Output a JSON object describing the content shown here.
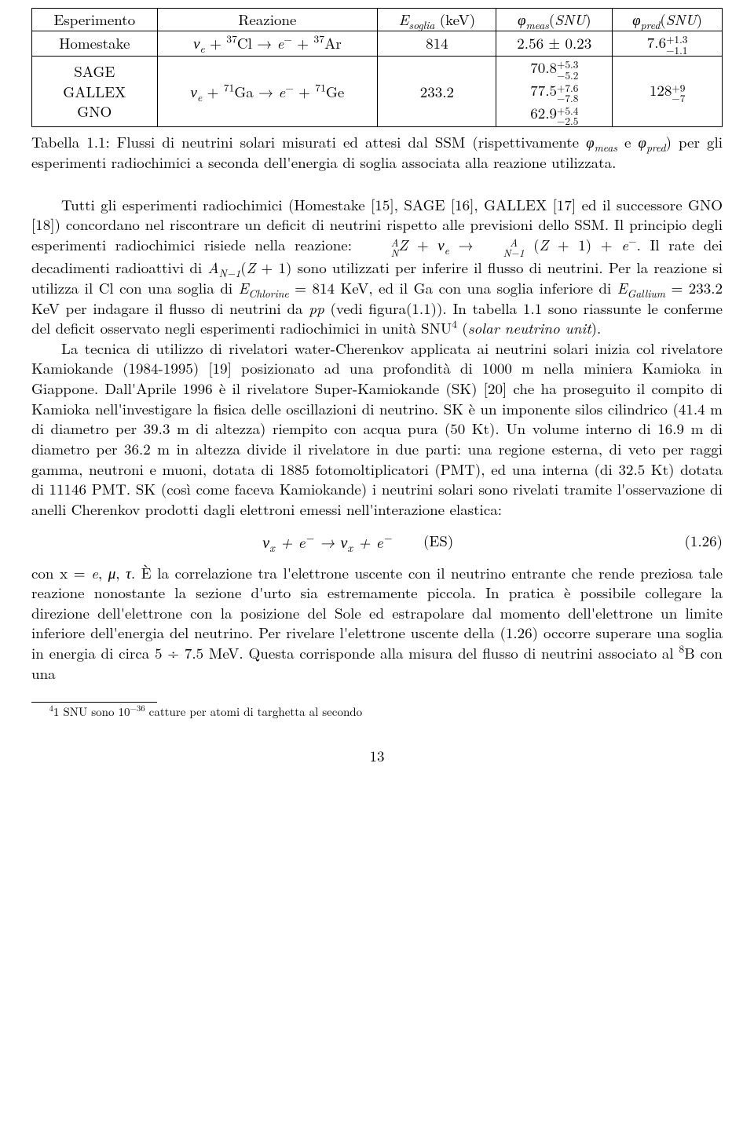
{
  "table": {
    "headers": [
      "Esperimento",
      "Reazione",
      "E_soglia (keV)",
      "φ_meas(SNU)",
      "φ_pred(SNU)"
    ],
    "row1": {
      "exp": "Homestake",
      "reaction": "ν_e + ³⁷Cl → e⁻ + ³⁷Ar",
      "esoglia": "814",
      "phimeas": "2.56 ± 0.23",
      "phipred_base": "7.6",
      "phipred_up": "+1.3",
      "phipred_down": "−1.1"
    },
    "row2": {
      "exp1": "SAGE",
      "exp2": "GALLEX",
      "exp3": "GNO",
      "reaction": "ν_e + ⁷¹Ga → e⁻ + ⁷¹Ge",
      "esoglia": "233.2",
      "m1_base": "70.8",
      "m1_up": "+5.3",
      "m1_down": "−5.2",
      "m2_base": "77.5",
      "m2_up": "+7.6",
      "m2_down": "−7.8",
      "m3_base": "62.9",
      "m3_up": "+5.4",
      "m3_down": "−2.5",
      "pred_base": "128",
      "pred_up": "+9",
      "pred_down": "−7"
    }
  },
  "caption": {
    "label": "Tabella 1.1:",
    "text": "Flussi di neutrini solari misurati ed attesi dal SSM (rispettivamente φ_meas e φ_pred) per gli esperimenti radiochimici a seconda dell'energia di soglia associata alla reazione utilizzata."
  },
  "para1": "Tutti gli esperimenti radiochimici (Homestake [15], SAGE [16], GALLEX [17] ed il successore GNO [18]) concordano nel riscontrare un deficit di neutrini rispetto alle previsioni dello SSM. Il principio degli esperimenti radiochimici risiede nella reazione: ",
  "para1_react": "A_N Z + ν_e → A_(N−1) (Z + 1) + e⁻",
  "para1b": ". Il rate dei decadimenti radioattivi di A_(N−1)(Z + 1) sono utilizzati per inferire il flusso di neutrini. Per la reazione si utilizza il Cl con una soglia di E_Chlorine = 814 KeV, ed il Ga con una soglia inferiore di E_Gallium = 233.2 KeV per indagare il flusso di neutrini da pp (vedi figura(1.1)). In tabella 1.1 sono riassunte le conferme del deficit osservato negli esperimenti radiochimici in unità SNU⁴ (solar neutrino unit).",
  "para2": "La tecnica di utilizzo di rivelatori water-Cherenkov applicata ai neutrini solari inizia col rivelatore Kamiokande (1984-1995) [19] posizionato ad una profondità di 1000 m nella miniera Kamioka in Giappone. Dall'Aprile 1996 è il rivelatore Super-Kamiokande (SK) [20] che ha proseguito il compito di Kamioka nell'investigare la fisica delle oscillazioni di neutrino. SK è un imponente silos cilindrico (41.4 m di diametro per 39.3 m di altezza) riempito con acqua pura (50 Kt). Un volume interno di 16.9 m di diametro per 36.2 m in altezza divide il rivelatore in due parti: una regione esterna, di veto per raggi gamma, neutroni e muoni, dotata di 1885 fotomoltiplicatori (PMT), ed una interna (di 32.5 Kt) dotata di 11146 PMT. SK (così come faceva Kamiokande) i neutrini solari sono rivelati tramite l'osservazione di anelli Cherenkov prodotti dagli elettroni emessi nell'interazione elastica:",
  "equation": {
    "formula": "ν_x + e⁻ → ν_x + e⁻",
    "tag": "(ES)",
    "number": "(1.26)"
  },
  "para3": "con x = e, μ, τ. È la correlazione tra l'elettrone uscente con il neutrino entrante che rende preziosa tale reazione nonostante la sezione d'urto sia estremamente piccola. In pratica è possibile collegare la direzione dell'elettrone con la posizione del Sole ed estrapolare dal momento dell'elettrone un limite inferiore dell'energia del neutrino. Per rivelare l'elettrone uscente della (1.26) occorre superare una soglia in energia di circa 5 ÷ 7.5 MeV. Questa corrisponde alla misura del flusso di neutrini associato al ⁸B con una",
  "footnote": "⁴1 SNU sono 10⁻³⁶ catture per atomi di targhetta al secondo",
  "pagenum": "13",
  "style": {
    "font_family": "Latin Modern Roman / Computer Modern",
    "body_fontsize_pt": 14,
    "footnote_fontsize_pt": 11,
    "text_color": "#000000",
    "background_color": "#ffffff",
    "table_border_color": "#000000"
  }
}
